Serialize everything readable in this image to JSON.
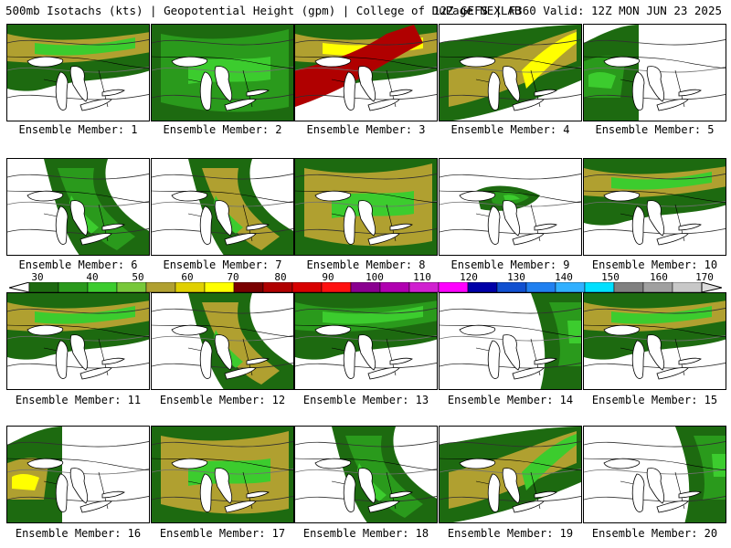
{
  "header": {
    "title_left": "500mb Isotachs (kts) | Geopotential Height (gpm) | College of DuPage NEXLAB",
    "title_right": "12Z GEFS | F360 Valid: 12Z MON JUN 23 2025"
  },
  "legend": {
    "ticks": [
      "30",
      "40",
      "50",
      "60",
      "70",
      "80",
      "90",
      "100",
      "110",
      "120",
      "130",
      "140",
      "150",
      "160",
      "170"
    ],
    "colors": [
      "#1d6a10",
      "#2a9a1c",
      "#3ccc2e",
      "#78c83a",
      "#b0a030",
      "#e0d000",
      "#ffff00",
      "#7a0000",
      "#b00000",
      "#d80000",
      "#ff1010",
      "#8a0090",
      "#b000b0",
      "#d020d0",
      "#ff00ff",
      "#0000a8",
      "#1050d0",
      "#2080f0",
      "#30b0ff",
      "#00e0ff",
      "#808080",
      "#a0a0a0",
      "#c8c8c8"
    ]
  },
  "members": [
    {
      "label": "Ensemble Member: 1",
      "intensity": 2,
      "band": "north"
    },
    {
      "label": "Ensemble Member: 2",
      "intensity": 1,
      "band": "wide"
    },
    {
      "label": "Ensemble Member: 3",
      "intensity": 4,
      "band": "north"
    },
    {
      "label": "Ensemble Member: 4",
      "intensity": 3,
      "band": "diag"
    },
    {
      "label": "Ensemble Member: 5",
      "intensity": 1,
      "band": "west"
    },
    {
      "label": "Ensemble Member: 6",
      "intensity": 1,
      "band": "trough"
    },
    {
      "label": "Ensemble Member: 7",
      "intensity": 2,
      "band": "trough"
    },
    {
      "label": "Ensemble Member: 8",
      "intensity": 2,
      "band": "wide"
    },
    {
      "label": "Ensemble Member: 9",
      "intensity": 1,
      "band": "spot"
    },
    {
      "label": "Ensemble Member: 10",
      "intensity": 2,
      "band": "north"
    },
    {
      "label": "Ensemble Member: 11",
      "intensity": 2,
      "band": "north"
    },
    {
      "label": "Ensemble Member: 12",
      "intensity": 2,
      "band": "trough"
    },
    {
      "label": "Ensemble Member: 13",
      "intensity": 1,
      "band": "north"
    },
    {
      "label": "Ensemble Member: 14",
      "intensity": 1,
      "band": "east"
    },
    {
      "label": "Ensemble Member: 15",
      "intensity": 2,
      "band": "north"
    },
    {
      "label": "Ensemble Member: 16",
      "intensity": 3,
      "band": "west"
    },
    {
      "label": "Ensemble Member: 17",
      "intensity": 2,
      "band": "wide"
    },
    {
      "label": "Ensemble Member: 18",
      "intensity": 1,
      "band": "trough"
    },
    {
      "label": "Ensemble Member: 19",
      "intensity": 2,
      "band": "diag"
    },
    {
      "label": "Ensemble Member: 20",
      "intensity": 1,
      "band": "east"
    }
  ]
}
